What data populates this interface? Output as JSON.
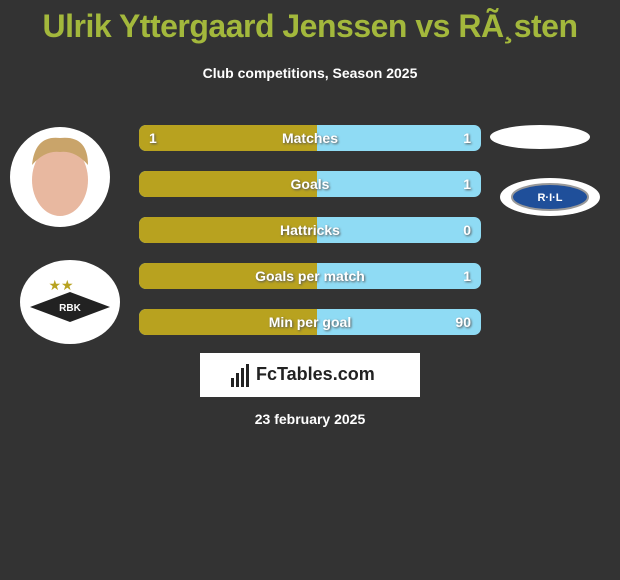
{
  "header": {
    "title": "Ulrik Yttergaard Jenssen vs RÃ¸sten",
    "subtitle": "Club competitions, Season 2025"
  },
  "rows": [
    {
      "label": "Matches",
      "left": 1,
      "right": 1
    },
    {
      "label": "Goals",
      "left": null,
      "right": 1
    },
    {
      "label": "Hattricks",
      "left": null,
      "right": 0
    },
    {
      "label": "Goals per match",
      "left": null,
      "right": 1
    },
    {
      "label": "Min per goal",
      "left": null,
      "right": 90
    }
  ],
  "logos": {
    "right_club": "R·I·L",
    "left_club": "RBK"
  },
  "brand": "FcTables.com",
  "date": "23 february 2025"
}
